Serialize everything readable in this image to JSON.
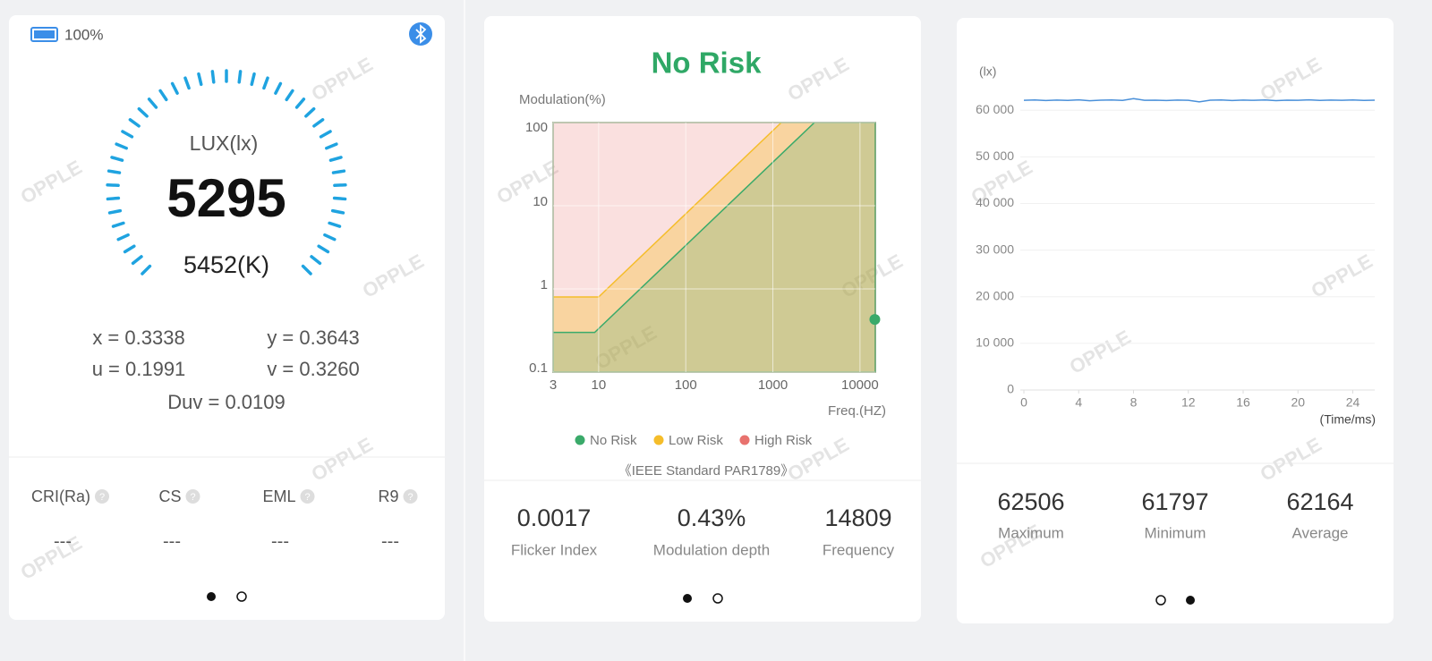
{
  "watermark": "OPPLE",
  "help_icon": "?",
  "gauge_panel": {
    "battery": "100%",
    "lux_label": "LUX(lx)",
    "lux": 5295,
    "cct": "5452(K)",
    "coords": [
      "x = 0.3338",
      "y = 0.3643",
      "u = 0.1991",
      "v = 0.3260"
    ],
    "duv": "Duv = 0.0109",
    "metrics": [
      {
        "label": "CRI(Ra)",
        "value": "---"
      },
      {
        "label": "CS",
        "value": "---"
      },
      {
        "label": "EML",
        "value": "---"
      },
      {
        "label": "R9",
        "value": "---"
      }
    ]
  },
  "flicker_panel": {
    "chart": {
      "type": "area",
      "title": "No Risk",
      "y_label": "Modulation(%)",
      "x_label": "Freq.(HZ)",
      "log_x": true,
      "log_y": true,
      "xlim": [
        3,
        15000
      ],
      "xticks": [
        3,
        10,
        100,
        1000,
        10000
      ],
      "ylim": [
        0.1,
        100
      ],
      "yticks": [
        0.1,
        1,
        10,
        100
      ],
      "series": [
        {
          "name": "No Risk",
          "color": "#3aaa6a",
          "x": [
            3,
            9,
            3000
          ],
          "values": [
            0.3,
            0.3,
            100
          ]
        },
        {
          "name": "Low Risk",
          "color": "#f5bd2a",
          "x": [
            3,
            10,
            1250
          ],
          "values": [
            0.8,
            0.8,
            100
          ]
        },
        {
          "name": "High Risk",
          "color": "#e8726e"
        }
      ],
      "point": {
        "x": 14809,
        "y": 0.43
      }
    },
    "standard": "《IEEE Standard PAR1789》",
    "stats": [
      {
        "value": 0.0017,
        "label": "Flicker Index"
      },
      {
        "value": "0.43%",
        "label": "Modulation depth"
      },
      {
        "value": 14809,
        "label": "Frequency"
      }
    ]
  },
  "wave_panel": {
    "chart": {
      "type": "line",
      "y_label": "(lx)",
      "x_label": "(Time/ms)",
      "color": "#4a90d9",
      "xlim": [
        0,
        25.6
      ],
      "xticks": [
        0,
        4,
        8,
        12,
        16,
        20,
        24
      ],
      "ylim": [
        0,
        66000
      ],
      "yticks": [
        0,
        {
          "value": 10000,
          "label": "10 000"
        },
        {
          "value": 20000,
          "label": "20 000"
        },
        {
          "value": 30000,
          "label": "30 000"
        },
        {
          "value": 40000,
          "label": "40 000"
        },
        {
          "value": 50000,
          "label": "50 000"
        },
        {
          "value": 60000,
          "label": "60 000"
        }
      ],
      "x": [
        0,
        0.8,
        1.6,
        2.4,
        3.2,
        4,
        4.8,
        5.6,
        6.4,
        7.2,
        8,
        8.8,
        9.6,
        10.4,
        11.2,
        12,
        12.8,
        13.6,
        14.4,
        15.2,
        16,
        16.8,
        17.6,
        18.4,
        19.2,
        20,
        20.8,
        21.6,
        22.4,
        23.2,
        24,
        24.8,
        25.6
      ],
      "values": [
        62150,
        62210,
        62080,
        62180,
        62120,
        62240,
        62050,
        62160,
        62200,
        62110,
        62506,
        62130,
        62170,
        62090,
        62190,
        62140,
        61797,
        62160,
        62220,
        62100,
        62180,
        62130,
        62210,
        62070,
        62170,
        62150,
        62230,
        62110,
        62190,
        62140,
        62200,
        62120,
        62160
      ]
    },
    "stats": [
      {
        "value": 62506,
        "label": "Maximum"
      },
      {
        "value": 61797,
        "label": "Minimum"
      },
      {
        "value": 62164,
        "label": "Average"
      }
    ]
  }
}
